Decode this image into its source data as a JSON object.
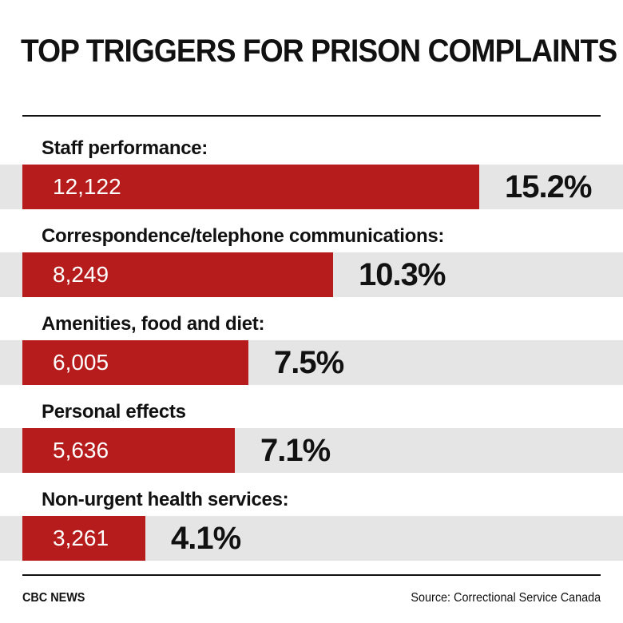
{
  "header": {
    "title": "TOP TRIGGERS FOR PRISON COMPLAINTS"
  },
  "chart_data": {
    "type": "bar",
    "orientation": "horizontal",
    "categories": [
      "Staff performance:",
      "Correspondence/telephone communications:",
      "Amenities, food and diet:",
      "Personal effects",
      "Non-urgent health services:"
    ],
    "values": [
      12122,
      8249,
      6005,
      5636,
      3261
    ],
    "value_labels": [
      "12,122",
      "8,249",
      "6,005",
      "5,636",
      "3,261"
    ],
    "percent_labels": [
      "15.2%",
      "10.3%",
      "7.5%",
      "7.1%",
      "4.1%"
    ],
    "bar_color": "#b71c1c",
    "track_color": "#e5e5e5"
  },
  "footer": {
    "brand": "CBC NEWS",
    "source": "Source: Correctional Service Canada"
  }
}
